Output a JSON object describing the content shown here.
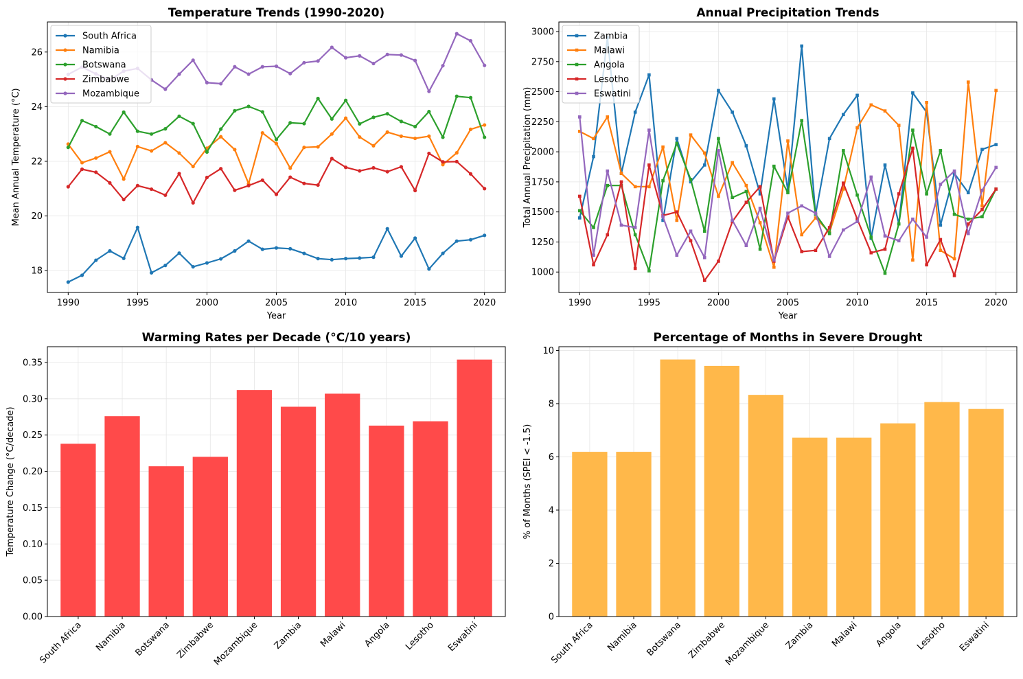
{
  "chart_data": [
    {
      "type": "line",
      "title": "Temperature Trends (1990-2020)",
      "xlabel": "Year",
      "ylabel": "Mean Annual Temperature (°C)",
      "xlim": [
        1988.5,
        2021.5
      ],
      "ylim": [
        17.2,
        27.1
      ],
      "xticks": [
        1990,
        1995,
        2000,
        2005,
        2010,
        2015,
        2020
      ],
      "yticks": [
        18,
        20,
        22,
        24,
        26
      ],
      "grid": true,
      "legend": "top-left",
      "x": [
        1990,
        1991,
        1992,
        1993,
        1994,
        1995,
        1996,
        1997,
        1998,
        1999,
        2000,
        2001,
        2002,
        2003,
        2004,
        2005,
        2006,
        2007,
        2008,
        2009,
        2010,
        2011,
        2012,
        2013,
        2014,
        2015,
        2016,
        2017,
        2018,
        2019,
        2020
      ],
      "series": [
        {
          "name": "South Africa",
          "color": "#1f77b4",
          "values": [
            17.58,
            17.83,
            18.38,
            18.72,
            18.45,
            19.58,
            17.92,
            18.19,
            18.64,
            18.14,
            18.28,
            18.43,
            18.72,
            19.08,
            18.78,
            18.83,
            18.8,
            18.63,
            18.44,
            18.4,
            18.44,
            18.46,
            18.49,
            19.53,
            18.53,
            19.19,
            18.06,
            18.63,
            19.08,
            19.13,
            19.29
          ]
        },
        {
          "name": "Namibia",
          "color": "#ff7f0e",
          "values": [
            22.63,
            21.95,
            22.12,
            22.35,
            21.35,
            22.54,
            22.38,
            22.68,
            22.3,
            21.81,
            22.48,
            22.9,
            22.43,
            21.18,
            23.04,
            22.65,
            21.75,
            22.51,
            22.53,
            23.0,
            23.58,
            22.89,
            22.57,
            23.07,
            22.92,
            22.84,
            22.92,
            21.88,
            22.31,
            23.17,
            23.33
          ]
        },
        {
          "name": "Botswana",
          "color": "#2ca02c",
          "values": [
            22.51,
            23.49,
            23.27,
            23.0,
            23.8,
            23.1,
            23.0,
            23.19,
            23.65,
            23.38,
            22.34,
            23.18,
            23.85,
            24.01,
            23.81,
            22.8,
            23.41,
            23.38,
            24.3,
            23.55,
            24.23,
            23.37,
            23.61,
            23.74,
            23.46,
            23.27,
            23.82,
            22.88,
            24.38,
            24.33,
            22.88
          ]
        },
        {
          "name": "Zimbabwe",
          "color": "#d62728",
          "values": [
            21.07,
            21.71,
            21.6,
            21.21,
            20.6,
            21.11,
            20.98,
            20.76,
            21.55,
            20.48,
            21.41,
            21.73,
            20.94,
            21.11,
            21.31,
            20.79,
            21.42,
            21.19,
            21.13,
            22.1,
            21.78,
            21.65,
            21.76,
            21.62,
            21.8,
            20.93,
            22.29,
            21.98,
            21.99,
            21.54,
            21.0
          ]
        },
        {
          "name": "Mozambique",
          "color": "#9467bd",
          "values": [
            25.18,
            25.45,
            25.2,
            24.98,
            25.3,
            25.4,
            24.98,
            24.64,
            25.19,
            25.7,
            24.88,
            24.84,
            25.46,
            25.19,
            25.46,
            25.48,
            25.21,
            25.61,
            25.67,
            26.17,
            25.79,
            25.86,
            25.58,
            25.91,
            25.89,
            25.69,
            24.56,
            25.5,
            26.67,
            26.41,
            25.51
          ]
        }
      ]
    },
    {
      "type": "line",
      "title": "Annual Precipitation Trends",
      "xlabel": "Year",
      "ylabel": "Total Annual Precipitation (mm)",
      "xlim": [
        1988.5,
        2021.5
      ],
      "ylim": [
        830,
        3080
      ],
      "xticks": [
        1990,
        1995,
        2000,
        2005,
        2010,
        2015,
        2020
      ],
      "yticks": [
        1000,
        1250,
        1500,
        1750,
        2000,
        2250,
        2500,
        2750,
        3000
      ],
      "grid": true,
      "legend": "top-left",
      "x": [
        1990,
        1991,
        1992,
        1993,
        1994,
        1995,
        1996,
        1997,
        1998,
        1999,
        2000,
        2001,
        2002,
        2003,
        2004,
        2005,
        2006,
        2007,
        2008,
        2009,
        2010,
        2011,
        2012,
        2013,
        2014,
        2015,
        2016,
        2017,
        2018,
        2019,
        2020
      ],
      "series": [
        {
          "name": "Zambia",
          "color": "#1f77b4",
          "values": [
            1450,
            1960,
            2950,
            1820,
            2330,
            2640,
            1430,
            2110,
            1750,
            1890,
            2510,
            2330,
            2050,
            1650,
            2440,
            1680,
            2880,
            1480,
            2110,
            2310,
            2470,
            1280,
            1890,
            1400,
            2490,
            2330,
            1390,
            1820,
            1660,
            2020,
            2060
          ]
        },
        {
          "name": "Malawi",
          "color": "#ff7f0e",
          "values": [
            2170,
            2110,
            2290,
            1820,
            1710,
            1710,
            2040,
            1430,
            2140,
            1990,
            1630,
            1910,
            1720,
            1410,
            1040,
            2090,
            1310,
            1450,
            1330,
            1690,
            2200,
            2390,
            2340,
            2220,
            1100,
            2410,
            1180,
            1110,
            2580,
            1550,
            2510
          ]
        },
        {
          "name": "Angola",
          "color": "#2ca02c",
          "values": [
            1510,
            1370,
            1720,
            1720,
            1310,
            1010,
            1760,
            2070,
            1770,
            1340,
            2110,
            1620,
            1670,
            1190,
            1880,
            1660,
            2260,
            1480,
            1320,
            2010,
            1640,
            1290,
            990,
            1400,
            2180,
            1650,
            2010,
            1480,
            1440,
            1460,
            1690
          ]
        },
        {
          "name": "Lesotho",
          "color": "#d62728",
          "values": [
            1630,
            1060,
            1310,
            1750,
            1030,
            1890,
            1470,
            1500,
            1260,
            930,
            1090,
            1420,
            1580,
            1710,
            1090,
            1460,
            1170,
            1180,
            1370,
            1740,
            1440,
            1160,
            1190,
            1650,
            2030,
            1060,
            1270,
            970,
            1400,
            1520,
            1690
          ]
        },
        {
          "name": "Eswatini",
          "color": "#9467bd",
          "values": [
            2290,
            1140,
            1840,
            1390,
            1370,
            2180,
            1460,
            1140,
            1340,
            1120,
            2010,
            1430,
            1220,
            1530,
            1100,
            1490,
            1550,
            1490,
            1130,
            1350,
            1420,
            1790,
            1300,
            1260,
            1440,
            1290,
            1730,
            1840,
            1320,
            1680,
            1870
          ]
        }
      ]
    },
    {
      "type": "bar",
      "title": "Warming Rates per Decade (°C/10 years)",
      "xlabel": "",
      "ylabel": "Temperature Change (°C/decade)",
      "ylim": [
        0,
        0.3717
      ],
      "yticks": [
        0.0,
        0.05,
        0.1,
        0.15,
        0.2,
        0.25,
        0.3,
        0.35
      ],
      "ytick_labels": [
        "0.00",
        "0.05",
        "0.10",
        "0.15",
        "0.20",
        "0.25",
        "0.30",
        "0.35"
      ],
      "grid": true,
      "color": "#ff4a4a",
      "categories": [
        "South Africa",
        "Namibia",
        "Botswana",
        "Zimbabwe",
        "Mozambique",
        "Zambia",
        "Malawi",
        "Angola",
        "Lesotho",
        "Eswatini"
      ],
      "values": [
        0.238,
        0.276,
        0.207,
        0.22,
        0.312,
        0.289,
        0.307,
        0.263,
        0.269,
        0.354
      ]
    },
    {
      "type": "bar",
      "title": "Percentage of Months in Severe Drought",
      "xlabel": "",
      "ylabel": "% of Months (SPEI < -1.5)",
      "ylim": [
        0,
        10.14
      ],
      "yticks": [
        0,
        2,
        4,
        6,
        8,
        10
      ],
      "ytick_labels": [
        "0",
        "2",
        "4",
        "6",
        "8",
        "10"
      ],
      "grid": true,
      "color": "#ffb84a",
      "categories": [
        "South Africa",
        "Namibia",
        "Botswana",
        "Zimbabwe",
        "Mozambique",
        "Zambia",
        "Malawi",
        "Angola",
        "Lesotho",
        "Eswatini"
      ],
      "values": [
        6.19,
        6.19,
        9.66,
        9.42,
        8.33,
        6.72,
        6.72,
        7.26,
        8.06,
        7.8
      ]
    }
  ]
}
